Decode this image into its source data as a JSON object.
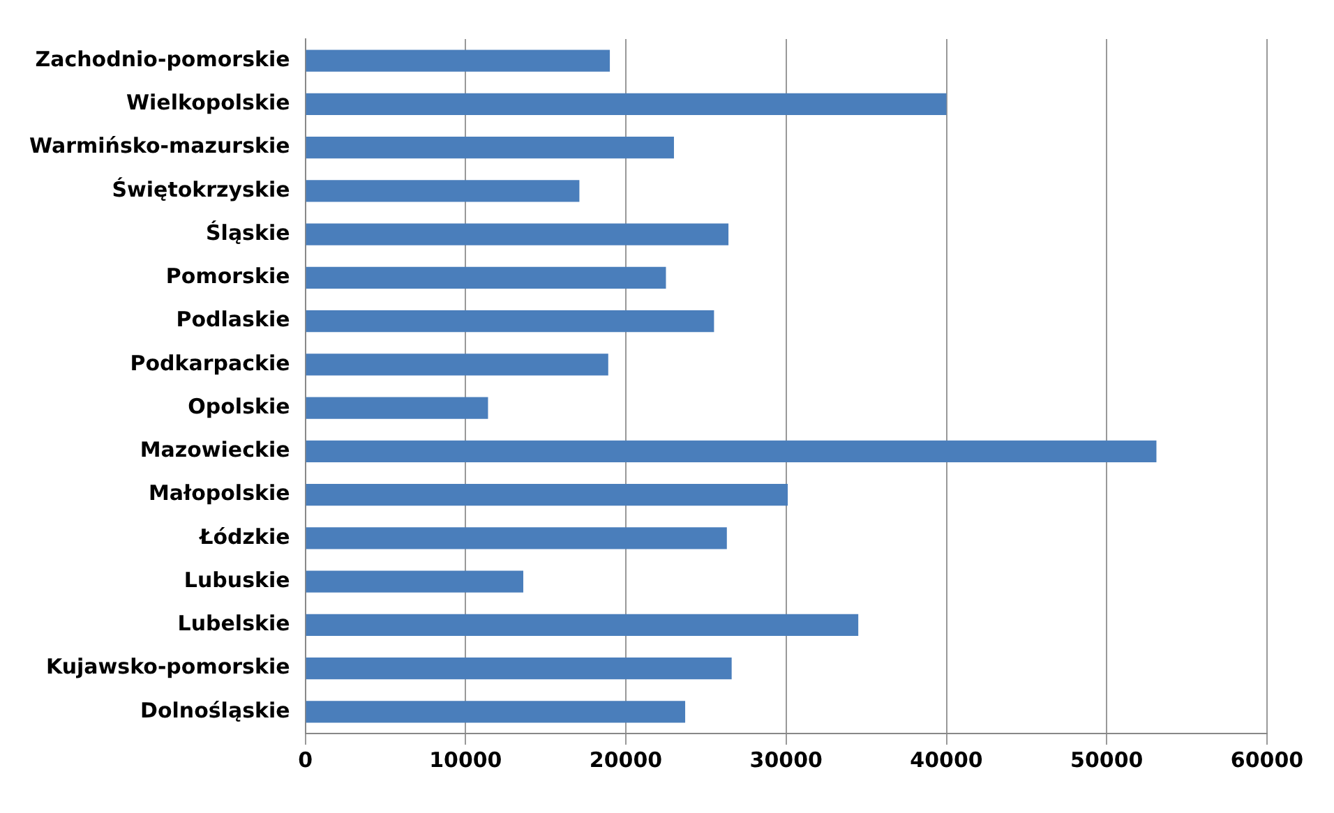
{
  "chart_data": {
    "type": "bar",
    "orientation": "horizontal",
    "categories": [
      "Zachodnio-pomorskie",
      "Wielkopolskie",
      "Warmińsko-mazurskie",
      "Świętokrzyskie",
      "Śląskie",
      "Pomorskie",
      "Podlaskie",
      "Podkarpackie",
      "Opolskie",
      "Mazowieckie",
      "Małopolskie",
      "Łódzkie",
      "Lubuskie",
      "Lubelskie",
      "Kujawsko-pomorskie",
      "Dolnośląskie"
    ],
    "values": [
      19000,
      40000,
      23000,
      17100,
      26400,
      22500,
      25500,
      18900,
      11400,
      53100,
      30100,
      26300,
      13600,
      34500,
      26600,
      23700
    ],
    "color": "#4a7ebb",
    "xlim": [
      0,
      60000
    ],
    "xticks": [
      0,
      10000,
      20000,
      30000,
      40000,
      50000,
      60000
    ],
    "grid": "x",
    "legend": false
  }
}
